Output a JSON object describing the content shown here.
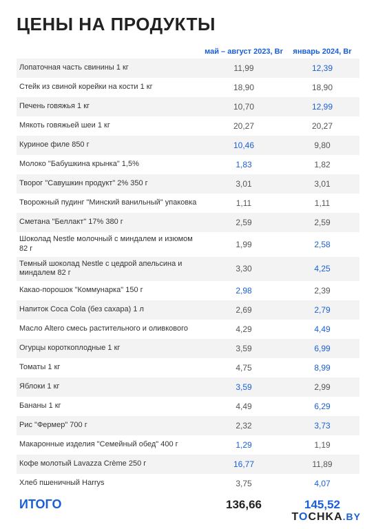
{
  "title": "ЦЕНЫ НА ПРОДУКТЫ",
  "columns": {
    "c1": "май – август 2023, Br",
    "c2": "январь 2024, Br"
  },
  "colors": {
    "accent": "#1a5fd6",
    "text": "#333",
    "muted": "#555",
    "stripe": "#f3f3f3",
    "bg": "#ffffff"
  },
  "rows": [
    {
      "name": "Лопаточная часть свинины  1 кг",
      "p1": "11,99",
      "h1": false,
      "p2": "12,39",
      "h2": true
    },
    {
      "name": "Стейк из свиной корейки на кости 1 кг",
      "p1": "18,90",
      "h1": false,
      "p2": "18,90",
      "h2": false
    },
    {
      "name": "Печень говяжья 1 кг",
      "p1": "10,70",
      "h1": false,
      "p2": "12,99",
      "h2": true
    },
    {
      "name": "Мякоть говяжьей шеи 1 кг",
      "p1": "20,27",
      "h1": false,
      "p2": "20,27",
      "h2": false
    },
    {
      "name": "Куриное филе 850 г",
      "p1": "10,46",
      "h1": true,
      "p2": "9,80",
      "h2": false
    },
    {
      "name": "Молоко \"Бабушкина крынка\" 1,5%",
      "p1": "1,83",
      "h1": true,
      "p2": "1,82",
      "h2": false
    },
    {
      "name": "Творог \"Савушкин продукт\" 2% 350 г",
      "p1": "3,01",
      "h1": false,
      "p2": "3,01",
      "h2": false
    },
    {
      "name": "Творожный пудинг \"Минский ванильный\" упаковка",
      "p1": "1,11",
      "h1": false,
      "p2": "1,11",
      "h2": false
    },
    {
      "name": "Сметана \"Беллакт\" 17% 380 г",
      "p1": "2,59",
      "h1": false,
      "p2": "2,59",
      "h2": false
    },
    {
      "name": "Шоколад Nestle молочный с миндалем и изюмом 82 г",
      "p1": "1,99",
      "h1": false,
      "p2": "2,58",
      "h2": true
    },
    {
      "name": "Темный шоколад Nestle с цедрой апельсина и миндалем 82 г",
      "p1": "3,30",
      "h1": false,
      "p2": "4,25",
      "h2": true
    },
    {
      "name": "Какао-порошок \"Коммунарка\" 150 г",
      "p1": "2,98",
      "h1": true,
      "p2": "2,39",
      "h2": false
    },
    {
      "name": "Напиток Coca Cola (без сахара)  1 л",
      "p1": "2,69",
      "h1": false,
      "p2": "2,79",
      "h2": true
    },
    {
      "name": "Масло Altero смесь растительного и оливкового",
      "p1": "4,29",
      "h1": false,
      "p2": "4,49",
      "h2": true
    },
    {
      "name": "Огурцы короткоплодные  1 кг",
      "p1": "3,59",
      "h1": false,
      "p2": "6,99",
      "h2": true
    },
    {
      "name": "Томаты 1 кг",
      "p1": "4,75",
      "h1": false,
      "p2": "8,99",
      "h2": true
    },
    {
      "name": "Яблоки 1 кг",
      "p1": "3,59",
      "h1": true,
      "p2": "2,99",
      "h2": false
    },
    {
      "name": "Бананы 1 кг",
      "p1": "4,49",
      "h1": false,
      "p2": "6,29",
      "h2": true
    },
    {
      "name": "Рис \"Фермер\" 700 г",
      "p1": "2,32",
      "h1": false,
      "p2": "3,73",
      "h2": true
    },
    {
      "name": "Макаронные изделия \"Семейный обед\" 400 г",
      "p1": "1,29",
      "h1": true,
      "p2": "1,19",
      "h2": false
    },
    {
      "name": "Кофе молотый Lavazza Crème 250 г",
      "p1": "16,77",
      "h1": true,
      "p2": "11,89",
      "h2": false
    },
    {
      "name": "Хлеб пшеничный Harrys",
      "p1": "3,75",
      "h1": false,
      "p2": "4,07",
      "h2": true
    }
  ],
  "total": {
    "label": "ИТОГО",
    "p1": "136,66",
    "p2": "145,52"
  },
  "logo": {
    "t": "T",
    "o": "O",
    "rest": "CHKA",
    "by": ".BY"
  }
}
